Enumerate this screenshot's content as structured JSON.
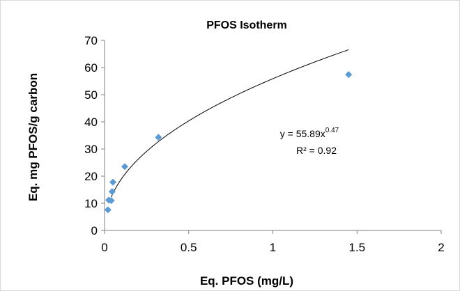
{
  "chart_data": {
    "type": "scatter",
    "title": "PFOS Isotherm",
    "xlabel": "Eq. PFOS (mg/L)",
    "ylabel": "Eq. mg PFOS/g carbon",
    "xlim": [
      0,
      2
    ],
    "ylim": [
      0,
      70
    ],
    "x_ticks": [
      "0",
      "0.5",
      "1",
      "1.5",
      "2"
    ],
    "y_ticks": [
      "0",
      "10",
      "20",
      "30",
      "40",
      "50",
      "60",
      "70"
    ],
    "grid": false,
    "legend": "none",
    "marker_color": "#5b9bd5",
    "points": [
      {
        "x": 0.02,
        "y": 7.6
      },
      {
        "x": 0.025,
        "y": 11.2
      },
      {
        "x": 0.04,
        "y": 11.0
      },
      {
        "x": 0.045,
        "y": 14.3
      },
      {
        "x": 0.05,
        "y": 17.8
      },
      {
        "x": 0.12,
        "y": 23.5
      },
      {
        "x": 0.32,
        "y": 34.3
      },
      {
        "x": 1.45,
        "y": 57.4
      }
    ],
    "trendline": {
      "type": "power",
      "a": 55.89,
      "b": 0.47,
      "x_range": [
        0.04,
        1.45
      ],
      "color": "#000000"
    },
    "annotations": {
      "equation_prefix": "y = 55.89x",
      "equation_exponent": "0.47",
      "r_squared": "R² = 0.92"
    }
  }
}
